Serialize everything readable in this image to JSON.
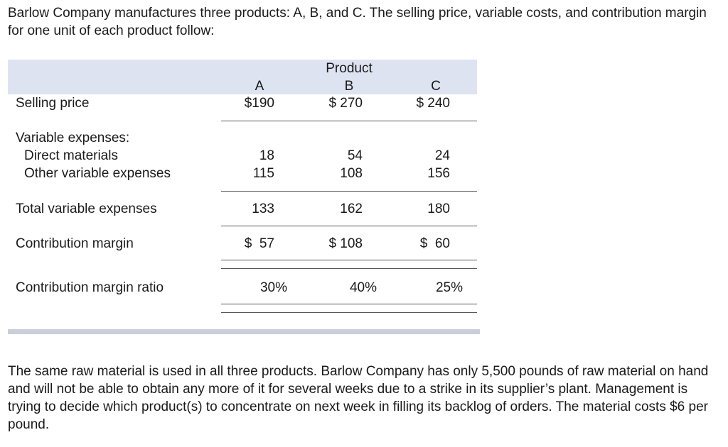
{
  "intro_text": "Barlow Company manufactures three products: A, B, and C. The selling price, variable costs, and contribution margin for one unit of each product follow:",
  "table": {
    "group_header": "Product",
    "columns": [
      "A",
      "B",
      "C"
    ],
    "rows": {
      "selling_price": {
        "label": "Selling price",
        "values": [
          "$190",
          "$ 270",
          "$ 240"
        ]
      },
      "variable_expenses_header": {
        "label": "Variable expenses:"
      },
      "direct_materials": {
        "label": "Direct materials",
        "values": [
          "18",
          "54",
          "24"
        ]
      },
      "other_variable": {
        "label": "Other variable expenses",
        "values": [
          "115",
          "108",
          "156"
        ]
      },
      "total_variable": {
        "label": "Total variable expenses",
        "values": [
          "133",
          "162",
          "180"
        ]
      },
      "contribution_margin": {
        "label": "Contribution margin",
        "values": [
          "$  57",
          "$ 108",
          "$  60"
        ]
      },
      "cm_ratio": {
        "label": "Contribution margin ratio",
        "values": [
          "30%",
          "40%",
          "25%"
        ]
      }
    }
  },
  "closing_text": "The same raw material is used in all three products. Barlow Company has only 5,500 pounds of raw material on hand and will not be able to obtain any more of it for several weeks due to a strike in its supplier’s plant. Management is trying to decide which product(s) to concentrate on next week in filling its backlog of orders. The material costs $6 per pound."
}
